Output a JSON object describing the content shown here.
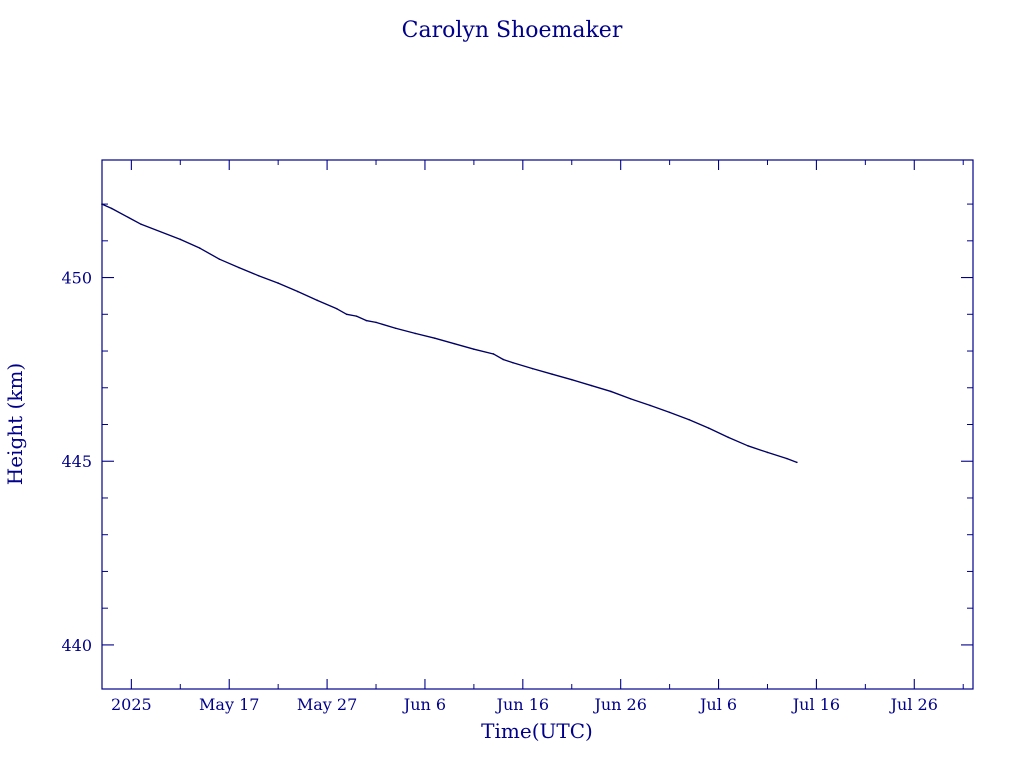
{
  "chart_data": {
    "type": "line",
    "title": "Carolyn Shoemaker",
    "xlabel": "Time(UTC)",
    "ylabel": "Height (km)",
    "colors": {
      "axis": "#00008b",
      "line": "#000066",
      "text": "#00008b"
    },
    "xlim": [
      "2025-05-04",
      "2025-08-01"
    ],
    "ylim": [
      438.8,
      453.2
    ],
    "x_ticks": [
      {
        "date": "2025-05-07",
        "label": "2025"
      },
      {
        "date": "2025-05-17",
        "label": "May 17"
      },
      {
        "date": "2025-05-27",
        "label": "May 27"
      },
      {
        "date": "2025-06-06",
        "label": "Jun  6"
      },
      {
        "date": "2025-06-16",
        "label": "Jun 16"
      },
      {
        "date": "2025-06-26",
        "label": "Jun 26"
      },
      {
        "date": "2025-07-06",
        "label": "Jul  6"
      },
      {
        "date": "2025-07-16",
        "label": "Jul 16"
      },
      {
        "date": "2025-07-26",
        "label": "Jul 26"
      }
    ],
    "x_minor_ticks": [
      "2025-05-12",
      "2025-05-22",
      "2025-06-01",
      "2025-06-11",
      "2025-06-21",
      "2025-07-01",
      "2025-07-11",
      "2025-07-21",
      "2025-07-31"
    ],
    "y_major_ticks": [
      440,
      445,
      450
    ],
    "y_minor_ticks": [
      441,
      442,
      443,
      444,
      446,
      447,
      448,
      449,
      451,
      452
    ],
    "y_tick_labels": [
      "440",
      "445",
      "450"
    ],
    "grid": false,
    "series": [
      {
        "points": [
          {
            "x": "2025-05-04",
            "y": 452.0
          },
          {
            "x": "2025-05-05",
            "y": 451.88
          },
          {
            "x": "2025-05-08",
            "y": 451.45
          },
          {
            "x": "2025-05-12",
            "y": 451.04
          },
          {
            "x": "2025-05-14",
            "y": 450.8
          },
          {
            "x": "2025-05-16",
            "y": 450.5
          },
          {
            "x": "2025-05-18",
            "y": 450.27
          },
          {
            "x": "2025-05-20",
            "y": 450.05
          },
          {
            "x": "2025-05-22",
            "y": 449.85
          },
          {
            "x": "2025-05-24",
            "y": 449.62
          },
          {
            "x": "2025-05-26",
            "y": 449.38
          },
          {
            "x": "2025-05-28",
            "y": 449.15
          },
          {
            "x": "2025-05-29",
            "y": 449.0
          },
          {
            "x": "2025-05-30",
            "y": 448.95
          },
          {
            "x": "2025-05-31",
            "y": 448.83
          },
          {
            "x": "2025-06-01",
            "y": 448.78
          },
          {
            "x": "2025-06-03",
            "y": 448.62
          },
          {
            "x": "2025-06-05",
            "y": 448.48
          },
          {
            "x": "2025-06-07",
            "y": 448.35
          },
          {
            "x": "2025-06-09",
            "y": 448.2
          },
          {
            "x": "2025-06-11",
            "y": 448.05
          },
          {
            "x": "2025-06-13",
            "y": 447.92
          },
          {
            "x": "2025-06-14",
            "y": 447.77
          },
          {
            "x": "2025-06-15",
            "y": 447.68
          },
          {
            "x": "2025-06-17",
            "y": 447.52
          },
          {
            "x": "2025-06-19",
            "y": 447.37
          },
          {
            "x": "2025-06-21",
            "y": 447.22
          },
          {
            "x": "2025-06-23",
            "y": 447.06
          },
          {
            "x": "2025-06-25",
            "y": 446.9
          },
          {
            "x": "2025-06-27",
            "y": 446.7
          },
          {
            "x": "2025-06-29",
            "y": 446.52
          },
          {
            "x": "2025-07-01",
            "y": 446.33
          },
          {
            "x": "2025-07-03",
            "y": 446.13
          },
          {
            "x": "2025-07-05",
            "y": 445.9
          },
          {
            "x": "2025-07-07",
            "y": 445.65
          },
          {
            "x": "2025-07-09",
            "y": 445.42
          },
          {
            "x": "2025-07-11",
            "y": 445.24
          },
          {
            "x": "2025-07-13",
            "y": 445.07
          },
          {
            "x": "2025-07-14",
            "y": 444.97
          }
        ]
      }
    ]
  }
}
